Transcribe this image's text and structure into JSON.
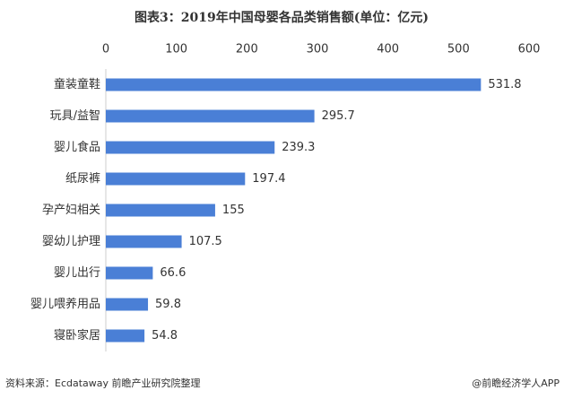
{
  "chart_data": {
    "type": "bar",
    "orientation": "horizontal",
    "title": "图表3：2019年中国母婴各品类销售额(单位：亿元)",
    "categories": [
      "童装童鞋",
      "玩具/益智",
      "婴儿食品",
      "纸尿裤",
      "孕产妇相关",
      "婴幼儿护理",
      "婴儿出行",
      "婴儿喂养用品",
      "寝卧家居"
    ],
    "values": [
      531.8,
      295.7,
      239.3,
      197.4,
      155,
      107.5,
      66.6,
      59.8,
      54.8
    ],
    "color": "#4a7fd6",
    "xlim": [
      0,
      600
    ],
    "xticks": [
      0,
      100,
      200,
      300,
      400,
      500,
      600
    ],
    "grid": false,
    "source": "资料来源：Ecdataway 前瞻产业研究院整理",
    "credit": "@前瞻经济学人APP"
  }
}
